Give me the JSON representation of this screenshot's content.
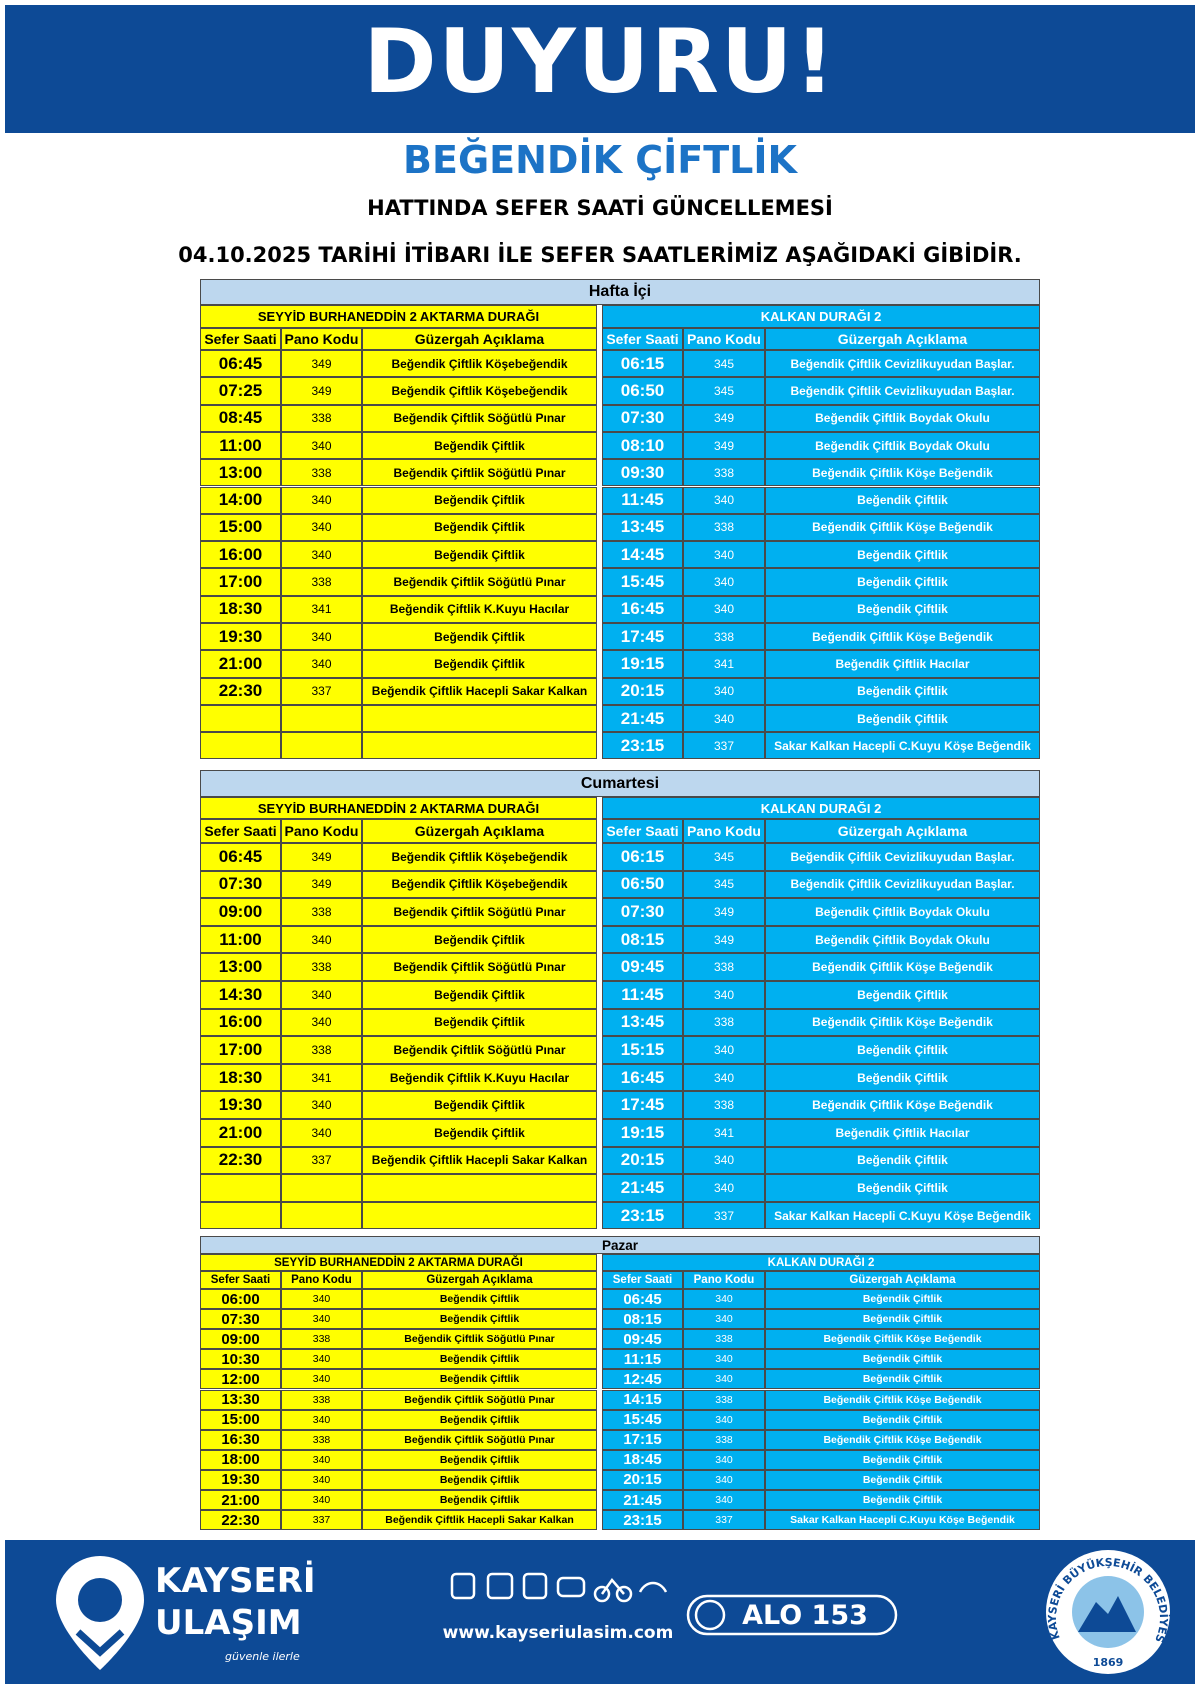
{
  "header": {
    "title": "DUYURU!"
  },
  "subtitle": "BEĞENDİK ÇİFTLİK",
  "line1": "HATTINDA SEFER SAATİ GÜNCELLEMESİ",
  "line2": "04.10.2025 TARİHİ İTİBARI İLE SEFER SAATLERİMİZ AŞAĞIDAKİ GİBİDİR.",
  "sections": [
    {
      "title": "Hafta İçi",
      "left": {
        "stop": "SEYYİD BURHANEDDİN 2 AKTARMA DURAĞI",
        "columns": [
          "Sefer Saati",
          "Pano Kodu",
          "Güzergah Açıklama"
        ],
        "rows": [
          [
            "06:45",
            349,
            "Beğendik Çiftlik Köşebeğendik"
          ],
          [
            "07:25",
            349,
            "Beğendik Çiftlik Köşebeğendik"
          ],
          [
            "08:45",
            338,
            "Beğendik Çiftlik Söğütlü Pınar"
          ],
          [
            "11:00",
            340,
            "Beğendik Çiftlik"
          ],
          [
            "13:00",
            338,
            "Beğendik Çiftlik Söğütlü Pınar"
          ],
          [
            "14:00",
            340,
            "Beğendik Çiftlik"
          ],
          [
            "15:00",
            340,
            "Beğendik Çiftlik"
          ],
          [
            "16:00",
            340,
            "Beğendik Çiftlik"
          ],
          [
            "17:00",
            338,
            "Beğendik Çiftlik Söğütlü Pınar"
          ],
          [
            "18:30",
            341,
            "Beğendik Çiftlik K.Kuyu Hacılar"
          ],
          [
            "19:30",
            340,
            "Beğendik Çiftlik"
          ],
          [
            "21:00",
            340,
            "Beğendik Çiftlik"
          ],
          [
            "22:30",
            337,
            "Beğendik Çiftlik Hacepli Sakar Kalkan"
          ]
        ]
      },
      "right": {
        "stop": "KALKAN DURAĞI 2",
        "columns": [
          "Sefer Saati",
          "Pano Kodu",
          "Güzergah Açıklama"
        ],
        "rows": [
          [
            "06:15",
            345,
            "Beğendik Çiftlik Cevizlikuyudan Başlar."
          ],
          [
            "06:50",
            345,
            "Beğendik Çiftlik Cevizlikuyudan Başlar."
          ],
          [
            "07:30",
            349,
            "Beğendik Çiftlik Boydak Okulu"
          ],
          [
            "08:10",
            349,
            "Beğendik Çiftlik Boydak Okulu"
          ],
          [
            "09:30",
            338,
            "Beğendik Çiftlik  Köşe Beğendik"
          ],
          [
            "11:45",
            340,
            "Beğendik Çiftlik"
          ],
          [
            "13:45",
            338,
            "Beğendik Çiftlik  Köşe Beğendik"
          ],
          [
            "14:45",
            340,
            "Beğendik Çiftlik"
          ],
          [
            "15:45",
            340,
            "Beğendik Çiftlik"
          ],
          [
            "16:45",
            340,
            "Beğendik Çiftlik"
          ],
          [
            "17:45",
            338,
            "Beğendik Çiftlik  Köşe Beğendik"
          ],
          [
            "19:15",
            341,
            "Beğendik Çiftlik Hacılar"
          ],
          [
            "20:15",
            340,
            "Beğendik Çiftlik"
          ],
          [
            "21:45",
            340,
            "Beğendik Çiftlik"
          ],
          [
            "23:15",
            337,
            "Sakar Kalkan Hacepli C.Kuyu Köşe Beğendik"
          ]
        ]
      }
    },
    {
      "title": "Cumartesi",
      "left": {
        "stop": "SEYYİD BURHANEDDİN 2 AKTARMA DURAĞI",
        "columns": [
          "Sefer Saati",
          "Pano Kodu",
          "Güzergah Açıklama"
        ],
        "rows": [
          [
            "06:45",
            349,
            "Beğendik Çiftlik Köşebeğendik"
          ],
          [
            "07:30",
            349,
            "Beğendik Çiftlik Köşebeğendik"
          ],
          [
            "09:00",
            338,
            "Beğendik Çiftlik Söğütlü Pınar"
          ],
          [
            "11:00",
            340,
            "Beğendik Çiftlik"
          ],
          [
            "13:00",
            338,
            "Beğendik Çiftlik Söğütlü Pınar"
          ],
          [
            "14:30",
            340,
            "Beğendik Çiftlik"
          ],
          [
            "16:00",
            340,
            "Beğendik Çiftlik"
          ],
          [
            "17:00",
            338,
            "Beğendik Çiftlik Söğütlü Pınar"
          ],
          [
            "18:30",
            341,
            "Beğendik Çiftlik K.Kuyu Hacılar"
          ],
          [
            "19:30",
            340,
            "Beğendik Çiftlik"
          ],
          [
            "21:00",
            340,
            "Beğendik Çiftlik"
          ],
          [
            "22:30",
            337,
            "Beğendik Çiftlik Hacepli Sakar Kalkan"
          ]
        ]
      },
      "right": {
        "stop": "KALKAN DURAĞI 2",
        "columns": [
          "Sefer Saati",
          "Pano Kodu",
          "Güzergah Açıklama"
        ],
        "rows": [
          [
            "06:15",
            345,
            "Beğendik Çiftlik Cevizlikuyudan Başlar."
          ],
          [
            "06:50",
            345,
            "Beğendik Çiftlik Cevizlikuyudan Başlar."
          ],
          [
            "07:30",
            349,
            "Beğendik Çiftlik Boydak Okulu"
          ],
          [
            "08:15",
            349,
            "Beğendik Çiftlik Boydak Okulu"
          ],
          [
            "09:45",
            338,
            "Beğendik Çiftlik  Köşe Beğendik"
          ],
          [
            "11:45",
            340,
            "Beğendik Çiftlik"
          ],
          [
            "13:45",
            338,
            "Beğendik Çiftlik  Köşe Beğendik"
          ],
          [
            "15:15",
            340,
            "Beğendik Çiftlik"
          ],
          [
            "16:45",
            340,
            "Beğendik Çiftlik"
          ],
          [
            "17:45",
            338,
            "Beğendik Çiftlik  Köşe Beğendik"
          ],
          [
            "19:15",
            341,
            "Beğendik Çiftlik Hacılar"
          ],
          [
            "20:15",
            340,
            "Beğendik Çiftlik"
          ],
          [
            "21:45",
            340,
            "Beğendik Çiftlik"
          ],
          [
            "23:15",
            337,
            "Sakar Kalkan Hacepli C.Kuyu Köşe Beğendik"
          ]
        ]
      }
    },
    {
      "title": "Pazar",
      "left": {
        "stop": "SEYYİD BURHANEDDİN 2 AKTARMA DURAĞI",
        "columns": [
          "Sefer Saati",
          "Pano Kodu",
          "Güzergah Açıklama"
        ],
        "rows": [
          [
            "06:00",
            340,
            "Beğendik Çiftlik"
          ],
          [
            "07:30",
            340,
            "Beğendik Çiftlik"
          ],
          [
            "09:00",
            338,
            "Beğendik Çiftlik Söğütlü Pınar"
          ],
          [
            "10:30",
            340,
            "Beğendik Çiftlik"
          ],
          [
            "12:00",
            340,
            "Beğendik Çiftlik"
          ],
          [
            "13:30",
            338,
            "Beğendik Çiftlik Söğütlü Pınar"
          ],
          [
            "15:00",
            340,
            "Beğendik Çiftlik"
          ],
          [
            "16:30",
            338,
            "Beğendik Çiftlik Söğütlü Pınar"
          ],
          [
            "18:00",
            340,
            "Beğendik Çiftlik"
          ],
          [
            "19:30",
            340,
            "Beğendik Çiftlik"
          ],
          [
            "21:00",
            340,
            "Beğendik Çiftlik"
          ],
          [
            "22:30",
            337,
            "Beğendik Çiftlik Hacepli Sakar Kalkan"
          ]
        ]
      },
      "right": {
        "stop": "KALKAN DURAĞI 2",
        "columns": [
          "Sefer Saati",
          "Pano Kodu",
          "Güzergah Açıklama"
        ],
        "rows": [
          [
            "06:45",
            340,
            "Beğendik Çiftlik"
          ],
          [
            "08:15",
            340,
            "Beğendik Çiftlik"
          ],
          [
            "09:45",
            338,
            "Beğendik Çiftlik  Köşe Beğendik"
          ],
          [
            "11:15",
            340,
            "Beğendik Çiftlik"
          ],
          [
            "12:45",
            340,
            "Beğendik Çiftlik"
          ],
          [
            "14:15",
            338,
            "Beğendik Çiftlik  Köşe Beğendik"
          ],
          [
            "15:45",
            340,
            "Beğendik Çiftlik"
          ],
          [
            "17:15",
            338,
            "Beğendik Çiftlik  Köşe Beğendik"
          ],
          [
            "18:45",
            340,
            "Beğendik Çiftlik"
          ],
          [
            "20:15",
            340,
            "Beğendik Çiftlik"
          ],
          [
            "21:45",
            340,
            "Beğendik Çiftlik"
          ],
          [
            "23:15",
            337,
            "Sakar Kalkan Hacepli C.Kuyu Köşe Beğendik"
          ]
        ]
      }
    }
  ],
  "footer": {
    "brand_top": "KAYSERİ",
    "brand_bottom": "ULAŞIM",
    "slogan": "güvenle ilerle",
    "website": "www.kayseriulasim.com",
    "hotline": "ALO 153",
    "emblem": "KAYSERİ BÜYÜKŞEHİR BELEDİYESİ",
    "emblem_year": "1869"
  }
}
